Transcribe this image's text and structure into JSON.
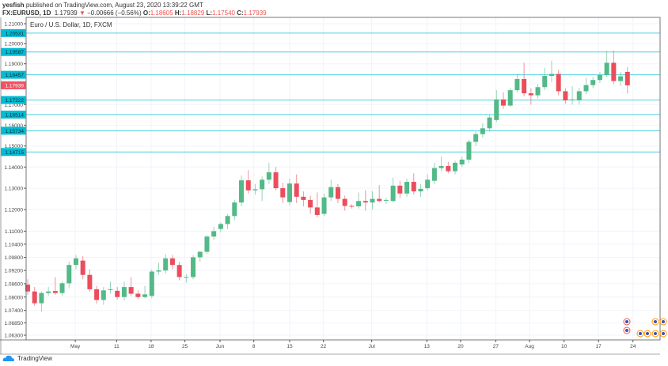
{
  "header": {
    "author": "yesfish",
    "published": "published on TradingView.com, August 23, 2020 13:39:22 GMT",
    "symbol": "FX:EURUSD, 1D",
    "last": "1.17939",
    "arrow": "▼",
    "change": "−0.00666 (−0.56%)",
    "o_label": "O:",
    "o": "1.18605",
    "h_label": "H:",
    "h": "1.18829",
    "l_label": "L:",
    "l": "1.17540",
    "c_label": "C:",
    "c": "1.17939"
  },
  "footer": {
    "brand": "TradingView"
  },
  "colors": {
    "up": "#26a69a",
    "up_fill": "#53b987",
    "down": "#eb4d5c",
    "level": "#00bcd4",
    "grid": "#f0f3fa"
  },
  "chart_data": {
    "type": "candlestick",
    "title": "Euro / U.S. Dollar, 1D, FXCM",
    "scale": "log",
    "ylim": [
      1.058,
      1.2135
    ],
    "y_ticks": [
      "1.21000",
      "1.20000",
      "1.19000",
      "1.17000",
      "1.16000",
      "1.15000",
      "1.14000",
      "1.13000",
      "1.12000",
      "1.11000",
      "1.10400",
      "1.09800",
      "1.09200",
      "1.08600",
      "1.08000",
      "1.07400",
      "1.06850",
      "1.06300"
    ],
    "x_ticks": [
      {
        "label": "May",
        "bar_index": 6.9
      },
      {
        "label": "11",
        "bar_index": 12.9
      },
      {
        "label": "18",
        "bar_index": 17.9
      },
      {
        "label": "25",
        "bar_index": 22.8
      },
      {
        "label": "Jun",
        "bar_index": 27.9
      },
      {
        "label": "8",
        "bar_index": 32.8
      },
      {
        "label": "15",
        "bar_index": 38
      },
      {
        "label": "22",
        "bar_index": 42.9
      },
      {
        "label": "Jul",
        "bar_index": 49.9
      },
      {
        "label": "13",
        "bar_index": 57.9
      },
      {
        "label": "20",
        "bar_index": 62.8
      },
      {
        "label": "27",
        "bar_index": 67.9
      },
      {
        "label": "Aug",
        "bar_index": 72.8
      },
      {
        "label": "10",
        "bar_index": 77.8
      },
      {
        "label": "17",
        "bar_index": 82.8
      },
      {
        "label": "24",
        "bar_index": 87.8
      }
    ],
    "levels": [
      "1.20531",
      "1.19587",
      "1.18457",
      "1.17222",
      "1.16514",
      "1.15734",
      "1.14715"
    ],
    "current_price": "1.17939",
    "ohlc": [
      [
        1.0856,
        1.088,
        1.081,
        1.0825
      ],
      [
        1.0825,
        1.0845,
        1.076,
        1.0772
      ],
      [
        1.0772,
        1.0825,
        1.0735,
        1.0818
      ],
      [
        1.0818,
        1.0845,
        1.0805,
        1.0825
      ],
      [
        1.0827,
        1.089,
        1.081,
        1.0818
      ],
      [
        1.0818,
        1.087,
        1.0805,
        1.0862
      ],
      [
        1.0862,
        1.096,
        1.084,
        1.0945
      ],
      [
        1.0945,
        1.099,
        1.0925,
        1.0975
      ],
      [
        1.0965,
        1.0985,
        1.088,
        1.09
      ],
      [
        1.09,
        1.0925,
        1.0825,
        1.0835
      ],
      [
        1.0835,
        1.085,
        1.077,
        1.0787
      ],
      [
        1.0787,
        1.0845,
        1.0765,
        1.083
      ],
      [
        1.0832,
        1.087,
        1.0815,
        1.0835
      ],
      [
        1.0828,
        1.0845,
        1.079,
        1.08
      ],
      [
        1.08,
        1.087,
        1.0785,
        1.0845
      ],
      [
        1.0845,
        1.089,
        1.0805,
        1.0815
      ],
      [
        1.0815,
        1.083,
        1.079,
        1.08
      ],
      [
        1.08,
        1.085,
        1.0795,
        1.0812
      ],
      [
        1.0805,
        1.0925,
        1.0795,
        1.0915
      ],
      [
        1.0915,
        1.0955,
        1.09,
        1.092
      ],
      [
        1.092,
        1.0995,
        1.0905,
        1.0975
      ],
      [
        1.0975,
        1.099,
        1.0925,
        1.0945
      ],
      [
        1.0945,
        1.096,
        1.0875,
        1.089
      ],
      [
        1.0887,
        1.0905,
        1.0865,
        1.089
      ],
      [
        1.089,
        1.099,
        1.088,
        1.098
      ],
      [
        1.098,
        1.101,
        1.096,
        1.1005
      ],
      [
        1.1005,
        1.108,
        1.0995,
        1.1075
      ],
      [
        1.1075,
        1.112,
        1.106,
        1.11
      ],
      [
        1.111,
        1.114,
        1.1095,
        1.1133
      ],
      [
        1.1133,
        1.118,
        1.111,
        1.117
      ],
      [
        1.117,
        1.1245,
        1.115,
        1.1233
      ],
      [
        1.1233,
        1.136,
        1.1215,
        1.1337
      ],
      [
        1.1337,
        1.1385,
        1.1275,
        1.129
      ],
      [
        1.129,
        1.132,
        1.127,
        1.1295
      ],
      [
        1.1295,
        1.1355,
        1.124,
        1.134
      ],
      [
        1.134,
        1.142,
        1.132,
        1.1375
      ],
      [
        1.1375,
        1.14,
        1.129,
        1.13
      ],
      [
        1.13,
        1.1325,
        1.123,
        1.1257
      ],
      [
        1.1235,
        1.1345,
        1.122,
        1.1322
      ],
      [
        1.1322,
        1.1365,
        1.123,
        1.126
      ],
      [
        1.126,
        1.1285,
        1.1215,
        1.1245
      ],
      [
        1.1245,
        1.1265,
        1.118,
        1.121
      ],
      [
        1.121,
        1.128,
        1.1165,
        1.1175
      ],
      [
        1.118,
        1.1275,
        1.117,
        1.1257
      ],
      [
        1.1257,
        1.134,
        1.124,
        1.1305
      ],
      [
        1.1305,
        1.132,
        1.123,
        1.125
      ],
      [
        1.125,
        1.1265,
        1.1195,
        1.1217
      ],
      [
        1.1217,
        1.1225,
        1.1205,
        1.1215
      ],
      [
        1.1215,
        1.128,
        1.1205,
        1.124
      ],
      [
        1.124,
        1.129,
        1.1195,
        1.1233
      ],
      [
        1.1233,
        1.1285,
        1.12,
        1.125
      ],
      [
        1.125,
        1.1315,
        1.1235,
        1.124
      ],
      [
        1.1243,
        1.1255,
        1.1225,
        1.1245
      ],
      [
        1.124,
        1.135,
        1.1235,
        1.1312
      ],
      [
        1.1312,
        1.1335,
        1.1255,
        1.1275
      ],
      [
        1.1275,
        1.1345,
        1.126,
        1.133
      ],
      [
        1.133,
        1.137,
        1.127,
        1.1285
      ],
      [
        1.1285,
        1.132,
        1.126,
        1.1297
      ],
      [
        1.13,
        1.1365,
        1.129,
        1.134
      ],
      [
        1.1335,
        1.142,
        1.132,
        1.1395
      ],
      [
        1.1395,
        1.145,
        1.138,
        1.1405
      ],
      [
        1.1405,
        1.1425,
        1.137,
        1.138
      ],
      [
        1.138,
        1.143,
        1.1365,
        1.142
      ],
      [
        1.1412,
        1.145,
        1.14,
        1.1435
      ],
      [
        1.1435,
        1.153,
        1.142,
        1.152
      ],
      [
        1.152,
        1.157,
        1.15,
        1.1557
      ],
      [
        1.1557,
        1.161,
        1.154,
        1.1585
      ],
      [
        1.1585,
        1.165,
        1.157,
        1.1637
      ],
      [
        1.1625,
        1.177,
        1.1615,
        1.1725
      ],
      [
        1.1725,
        1.176,
        1.168,
        1.1695
      ],
      [
        1.1695,
        1.178,
        1.169,
        1.177
      ],
      [
        1.177,
        1.185,
        1.176,
        1.1825
      ],
      [
        1.1825,
        1.1905,
        1.174,
        1.1755
      ],
      [
        1.1755,
        1.178,
        1.17,
        1.1745
      ],
      [
        1.1745,
        1.18,
        1.173,
        1.1785
      ],
      [
        1.1785,
        1.188,
        1.177,
        1.184
      ],
      [
        1.184,
        1.1915,
        1.181,
        1.185
      ],
      [
        1.185,
        1.187,
        1.1745,
        1.1765
      ],
      [
        1.1765,
        1.178,
        1.1705,
        1.172
      ],
      [
        1.1722,
        1.179,
        1.17,
        1.1725
      ],
      [
        1.172,
        1.178,
        1.17,
        1.1765
      ],
      [
        1.1765,
        1.183,
        1.175,
        1.1795
      ],
      [
        1.1795,
        1.1835,
        1.178,
        1.182
      ],
      [
        1.182,
        1.186,
        1.1805,
        1.1845
      ],
      [
        1.1845,
        1.1965,
        1.1835,
        1.1905
      ],
      [
        1.1905,
        1.1965,
        1.18,
        1.1815
      ],
      [
        1.1815,
        1.186,
        1.179,
        1.1838
      ],
      [
        1.186,
        1.1883,
        1.1754,
        1.1794
      ]
    ]
  }
}
